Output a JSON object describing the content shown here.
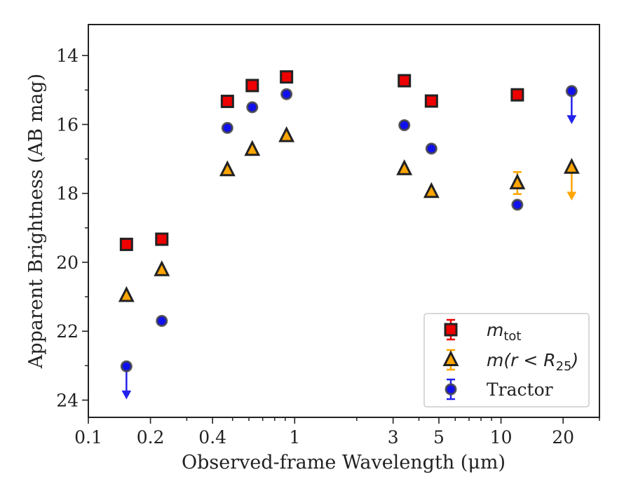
{
  "chart_data": {
    "type": "scatter",
    "xlabel": "Observed-frame Wavelength (μm)",
    "ylabel": "Apparent Brightness (AB mag)",
    "xscale": "log",
    "xlim": [
      0.1,
      30
    ],
    "ylim": [
      24.5,
      13.1
    ],
    "y_inverted": true,
    "grid": false,
    "legend_position": "lower-right",
    "xticks": [
      {
        "value": 0.1,
        "label": "0.1"
      },
      {
        "value": 0.2,
        "label": "0.2"
      },
      {
        "value": 0.4,
        "label": "0.4"
      },
      {
        "value": 1,
        "label": "1"
      },
      {
        "value": 3,
        "label": "3"
      },
      {
        "value": 5,
        "label": "5"
      },
      {
        "value": 10,
        "label": "10"
      },
      {
        "value": 20,
        "label": "20"
      }
    ],
    "yticks": [
      14,
      16,
      18,
      20,
      22,
      24
    ],
    "series": [
      {
        "name": "m_tot",
        "legend_main": "m",
        "legend_sub": "tot",
        "legend_suffix": "",
        "marker": "square",
        "color": "#ee0000",
        "edge": "#222222",
        "errcolor": "#ee0000",
        "points": [
          {
            "x": 0.153,
            "y": 19.48
          },
          {
            "x": 0.227,
            "y": 19.33
          },
          {
            "x": 0.472,
            "y": 15.33
          },
          {
            "x": 0.623,
            "y": 14.87
          },
          {
            "x": 0.913,
            "y": 14.62
          },
          {
            "x": 3.4,
            "y": 14.73
          },
          {
            "x": 4.6,
            "y": 15.32
          },
          {
            "x": 12.0,
            "y": 15.14
          }
        ]
      },
      {
        "name": "m(r < R_25)",
        "legend_main": "m(r < R",
        "legend_sub": "25",
        "legend_suffix": ")",
        "marker": "triangle",
        "color": "#ffa500",
        "edge": "#222222",
        "errcolor": "#ffa500",
        "points": [
          {
            "x": 0.153,
            "y": 20.97
          },
          {
            "x": 0.227,
            "y": 20.22
          },
          {
            "x": 0.472,
            "y": 17.32
          },
          {
            "x": 0.623,
            "y": 16.73
          },
          {
            "x": 0.913,
            "y": 16.33
          },
          {
            "x": 3.4,
            "y": 17.29
          },
          {
            "x": 4.6,
            "y": 17.95
          },
          {
            "x": 12.0,
            "y": 17.7,
            "err": 0.32
          },
          {
            "x": 22.0,
            "y": 17.25,
            "upper_limit": true
          }
        ]
      },
      {
        "name": "Tractor",
        "legend_main": "Tractor",
        "legend_sub": "",
        "legend_suffix": "",
        "marker": "circle",
        "color": "#1010ee",
        "edge": "#444444",
        "errcolor": "#2222ee",
        "points": [
          {
            "x": 0.153,
            "y": 23.02,
            "upper_limit": true
          },
          {
            "x": 0.227,
            "y": 21.7
          },
          {
            "x": 0.472,
            "y": 16.1
          },
          {
            "x": 0.623,
            "y": 15.5
          },
          {
            "x": 0.913,
            "y": 15.12
          },
          {
            "x": 3.4,
            "y": 16.02
          },
          {
            "x": 4.6,
            "y": 16.7
          },
          {
            "x": 12.0,
            "y": 18.33
          },
          {
            "x": 22.0,
            "y": 15.03,
            "upper_limit": true
          }
        ]
      }
    ]
  }
}
